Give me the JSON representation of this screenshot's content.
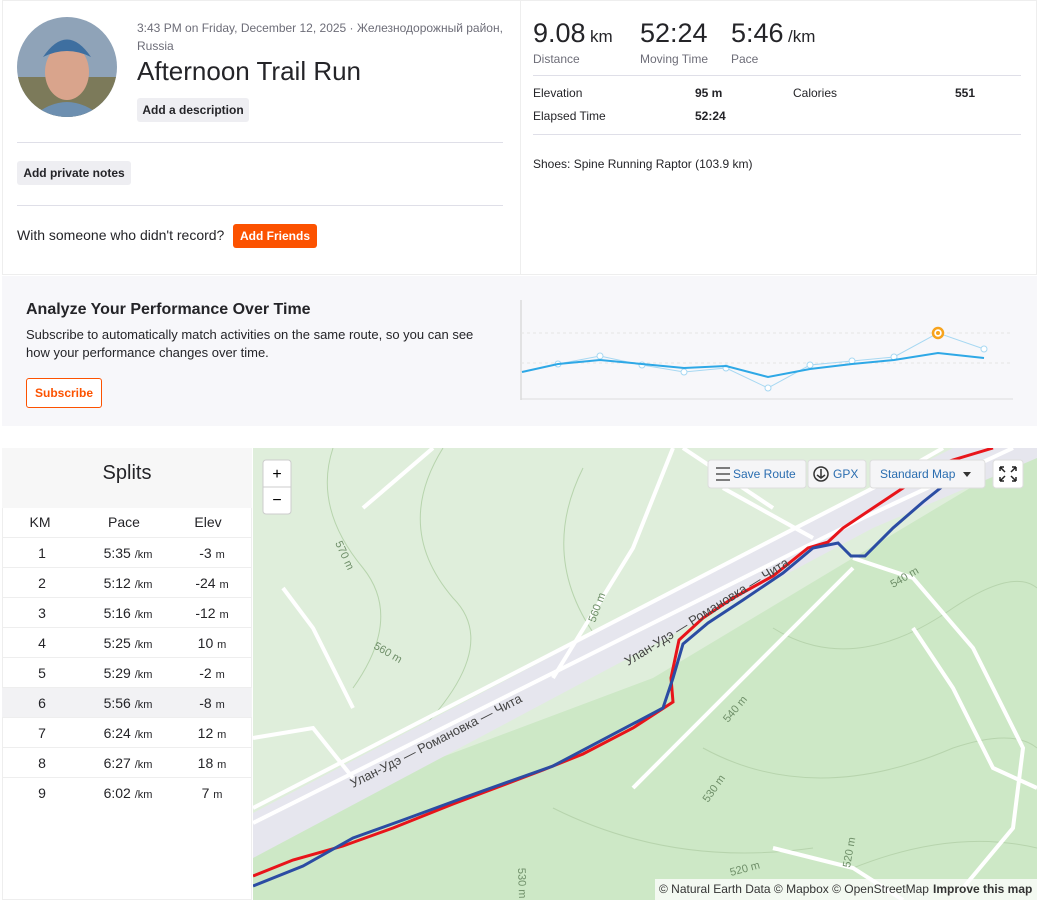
{
  "header": {
    "datetime": "3:43 PM on Friday, December 12, 2025 · Железнодорожный район, Russia",
    "title": "Afternoon Trail Run",
    "add_description": "Add a description",
    "add_private_notes": "Add private notes",
    "with_someone": "With someone who didn't record?",
    "add_friends": "Add Friends"
  },
  "stats": {
    "distance": {
      "value": "9.08",
      "unit": "km",
      "label": "Distance"
    },
    "moving_time": {
      "value": "52:24",
      "label": "Moving Time"
    },
    "pace": {
      "value": "5:46",
      "unit": "/km",
      "label": "Pace"
    },
    "elevation": {
      "label": "Elevation",
      "value": "95 m"
    },
    "calories": {
      "label": "Calories",
      "value": "551"
    },
    "elapsed_time": {
      "label": "Elapsed Time",
      "value": "52:24"
    },
    "shoes": "Shoes: Spine Running Raptor (103.9 km)"
  },
  "promo": {
    "title": "Analyze Your Performance Over Time",
    "text": "Subscribe to automatically match activities on the same route, so you can see how your performance changes over time.",
    "button": "Subscribe"
  },
  "splits": {
    "title": "Splits",
    "columns": [
      "KM",
      "Pace",
      "Elev"
    ],
    "rows": [
      {
        "km": "1",
        "pace": "5:35",
        "pace_unit": "/km",
        "elev": "-3",
        "elev_unit": "m"
      },
      {
        "km": "2",
        "pace": "5:12",
        "pace_unit": "/km",
        "elev": "-24",
        "elev_unit": "m"
      },
      {
        "km": "3",
        "pace": "5:16",
        "pace_unit": "/km",
        "elev": "-12",
        "elev_unit": "m"
      },
      {
        "km": "4",
        "pace": "5:25",
        "pace_unit": "/km",
        "elev": "10",
        "elev_unit": "m"
      },
      {
        "km": "5",
        "pace": "5:29",
        "pace_unit": "/km",
        "elev": "-2",
        "elev_unit": "m"
      },
      {
        "km": "6",
        "pace": "5:56",
        "pace_unit": "/km",
        "elev": "-8",
        "elev_unit": "m"
      },
      {
        "km": "7",
        "pace": "6:24",
        "pace_unit": "/km",
        "elev": "12",
        "elev_unit": "m"
      },
      {
        "km": "8",
        "pace": "6:27",
        "pace_unit": "/km",
        "elev": "18",
        "elev_unit": "m"
      },
      {
        "km": "9",
        "pace": "6:02",
        "pace_unit": "/km",
        "elev": "7",
        "elev_unit": "m"
      }
    ]
  },
  "map": {
    "zoom_in": "+",
    "zoom_out": "−",
    "save_route": "Save Route",
    "gpx": "GPX",
    "map_style": "Standard Map",
    "road_labels": [
      "Улан-Удэ — Романовка — Чита",
      "Улан-Удэ — Романовка — Чита"
    ],
    "contour_labels": [
      "570 m",
      "560 m",
      "560 m",
      "540 m",
      "540 m",
      "530 m",
      "530 m",
      "520 m",
      "520 m"
    ],
    "attribution": "© Natural Earth Data © Mapbox © OpenStreetMap",
    "improve": "Improve this map"
  }
}
